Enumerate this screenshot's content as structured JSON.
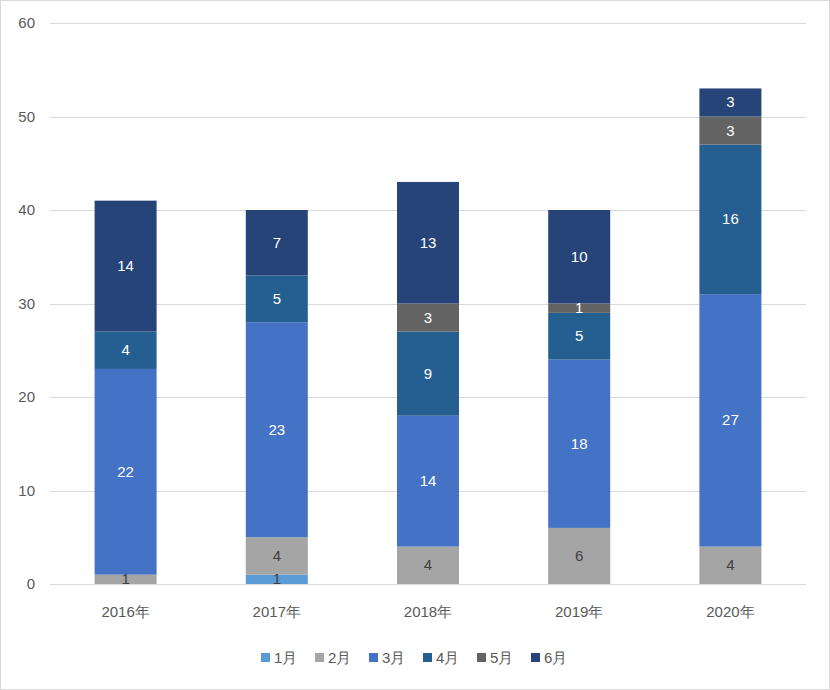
{
  "chart_data": {
    "type": "bar",
    "stacked": true,
    "data_labels": true,
    "grid": true,
    "legend": "bottom",
    "categories": [
      "2016年",
      "2017年",
      "2018年",
      "2019年",
      "2020年"
    ],
    "series": [
      {
        "name": "1月",
        "color": "#5b9bd5",
        "values": [
          null,
          1,
          null,
          null,
          null
        ]
      },
      {
        "name": "2月",
        "color": "#a5a5a5",
        "values": [
          1,
          4,
          4,
          6,
          4
        ]
      },
      {
        "name": "3月",
        "color": "#4472c4",
        "values": [
          22,
          23,
          14,
          18,
          27
        ]
      },
      {
        "name": "4月",
        "color": "#255e91",
        "values": [
          4,
          5,
          9,
          5,
          16
        ]
      },
      {
        "name": "5月",
        "color": "#636363",
        "values": [
          null,
          null,
          3,
          1,
          3
        ]
      },
      {
        "name": "6月",
        "color": "#264478",
        "values": [
          14,
          7,
          13,
          10,
          3
        ]
      }
    ],
    "ylim": [
      0,
      60
    ],
    "yticks": [
      0,
      10,
      20,
      30,
      40,
      50,
      60
    ]
  }
}
